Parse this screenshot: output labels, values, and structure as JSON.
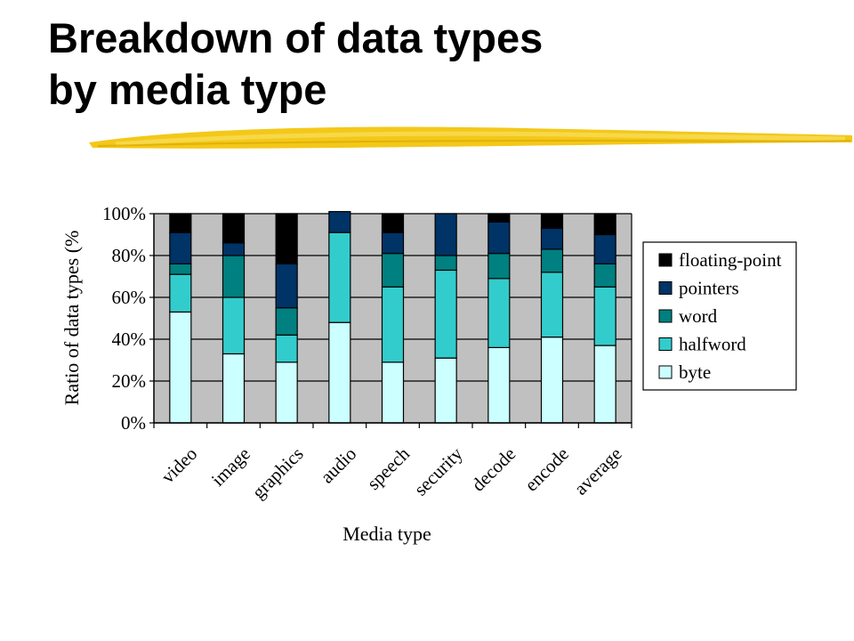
{
  "slide": {
    "title_line1": "Breakdown of data types",
    "title_line2": "by media type"
  },
  "chart_data": {
    "type": "bar",
    "stacked": true,
    "percent": true,
    "categories": [
      "video",
      "image",
      "graphics",
      "audio",
      "speech",
      "security",
      "decode",
      "encode",
      "average"
    ],
    "series": [
      {
        "name": "byte",
        "color": "#ccffff",
        "values": [
          53,
          33,
          29,
          48,
          29,
          31,
          36,
          41,
          37
        ]
      },
      {
        "name": "halfword",
        "color": "#33cccc",
        "values": [
          18,
          27,
          13,
          43,
          36,
          42,
          33,
          31,
          28
        ]
      },
      {
        "name": "word",
        "color": "#008080",
        "values": [
          5,
          20,
          13,
          0,
          16,
          7,
          12,
          11,
          11
        ]
      },
      {
        "name": "pointers",
        "color": "#003366",
        "values": [
          15,
          6,
          21,
          10,
          10,
          20,
          15,
          10,
          14
        ]
      },
      {
        "name": "floating-point",
        "color": "#000000",
        "values": [
          9,
          14,
          24,
          0,
          9,
          0,
          4,
          7,
          10
        ]
      }
    ],
    "ytick_labels": [
      "0%",
      "20%",
      "40%",
      "60%",
      "80%",
      "100%"
    ],
    "ylim": [
      0,
      100
    ],
    "xlabel": "Media type",
    "ylabel": "Ratio of data types (%",
    "grid": true,
    "plot_background": "#c0c0c0",
    "legend_position": "right"
  }
}
